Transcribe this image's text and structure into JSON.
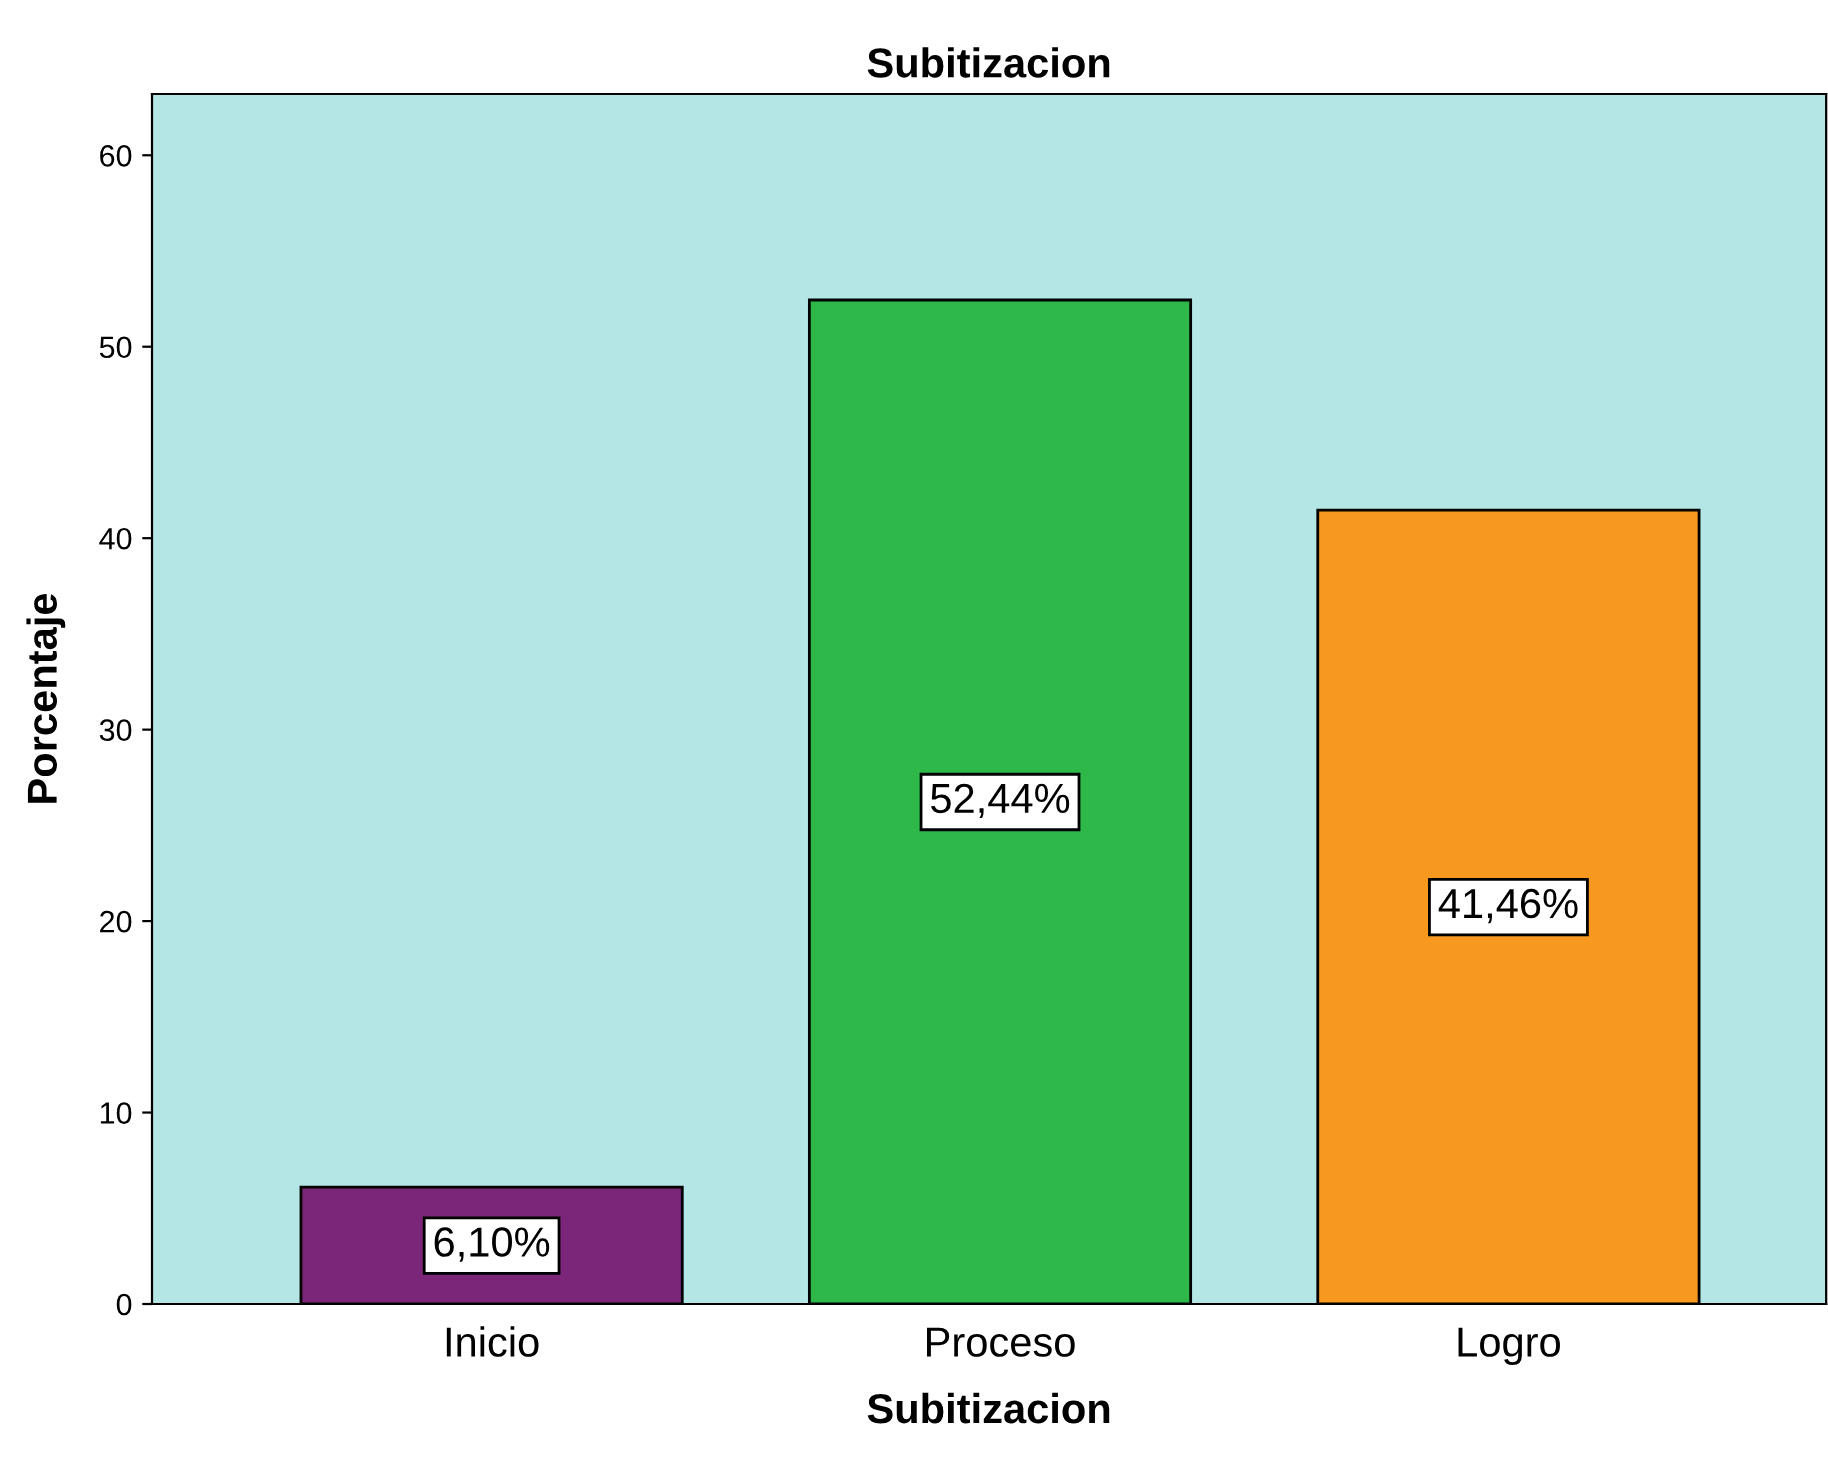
{
  "chart_data": {
    "type": "bar",
    "title": "Subitizacion",
    "xlabel": "Subitizacion",
    "ylabel": "Porcentaje",
    "categories": [
      "Inicio",
      "Proceso",
      "Logro"
    ],
    "values": [
      6.1,
      52.44,
      41.46
    ],
    "colors": [
      "#7b2679",
      "#2eb84a",
      "#f7991e"
    ],
    "value_labels": [
      "6,10%",
      "52,44%",
      "41,46%"
    ],
    "ylim": [
      0,
      63.2
    ],
    "yticks": [
      0,
      10,
      20,
      30,
      40,
      50,
      60
    ],
    "grid": false,
    "legend": false
  }
}
